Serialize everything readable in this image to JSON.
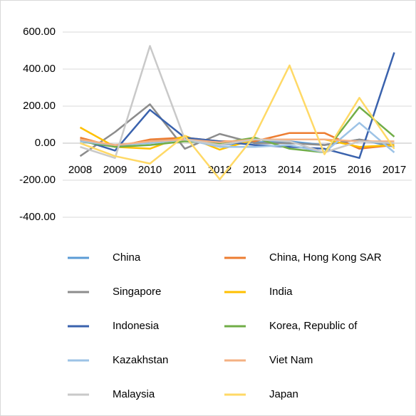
{
  "chart_data": {
    "type": "line",
    "categories": [
      "2008",
      "2009",
      "2010",
      "2011",
      "2012",
      "2013",
      "2014",
      "2015",
      "2016",
      "2017"
    ],
    "ylim": [
      -400,
      600
    ],
    "yticks": [
      {
        "value": 600,
        "label": "600.00"
      },
      {
        "value": 400,
        "label": "400.00"
      },
      {
        "value": 200,
        "label": "200.00"
      },
      {
        "value": 0,
        "label": "0.00"
      },
      {
        "value": -200,
        "label": "-200.00"
      },
      {
        "value": -400,
        "label": "-400.00"
      }
    ],
    "grid": true,
    "legend": "bottom",
    "series": [
      {
        "name": "China",
        "color": "#5b9bd5",
        "values": [
          20,
          -20,
          10,
          30,
          -10,
          5,
          10,
          -10,
          20,
          -20
        ]
      },
      {
        "name": "China, Hong Kong SAR",
        "color": "#ed7d31",
        "values": [
          30,
          -20,
          20,
          30,
          10,
          10,
          55,
          55,
          -30,
          -10
        ]
      },
      {
        "name": "Singapore",
        "color": "#8c8c8c",
        "values": [
          -70,
          60,
          210,
          -30,
          50,
          0,
          0,
          -10,
          20,
          -10
        ]
      },
      {
        "name": "India",
        "color": "#ffc000",
        "values": [
          85,
          -20,
          -30,
          40,
          -35,
          20,
          20,
          20,
          -20,
          -10
        ]
      },
      {
        "name": "Indonesia",
        "color": "#3a62ad",
        "values": [
          20,
          -40,
          180,
          30,
          10,
          -10,
          -20,
          -30,
          -80,
          490
        ]
      },
      {
        "name": "Korea, Republic of",
        "color": "#70ad47",
        "values": [
          10,
          -20,
          -10,
          10,
          0,
          30,
          -30,
          -50,
          195,
          35
        ]
      },
      {
        "name": "Kazakhstan",
        "color": "#9dc3e6",
        "values": [
          10,
          -10,
          0,
          20,
          -20,
          -20,
          -10,
          -50,
          110,
          -50
        ]
      },
      {
        "name": "Viet Nam",
        "color": "#f4b183",
        "values": [
          20,
          -10,
          10,
          20,
          5,
          20,
          20,
          20,
          10,
          10
        ]
      },
      {
        "name": "Malaysia",
        "color": "#c9c9c9",
        "values": [
          -20,
          -80,
          525,
          20,
          -10,
          20,
          10,
          -50,
          10,
          0
        ]
      },
      {
        "name": "Japan",
        "color": "#ffd966",
        "values": [
          0,
          -70,
          -110,
          40,
          -195,
          40,
          420,
          -60,
          245,
          -30
        ]
      }
    ]
  }
}
